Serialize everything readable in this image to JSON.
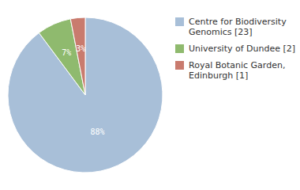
{
  "chart_data": {
    "type": "pie",
    "categories": [
      "Centre for Biodiversity\nGenomics [23]",
      "University of Dundee [2]",
      "Royal Botanic Garden,\nEdinburgh [1]"
    ],
    "values": [
      88,
      7,
      3
    ],
    "value_labels": [
      "88%",
      "7%",
      "3%"
    ],
    "colors": [
      "#a8bfd8",
      "#8fba6e",
      "#c97b6e"
    ],
    "data_labels": true,
    "legend": "right"
  }
}
